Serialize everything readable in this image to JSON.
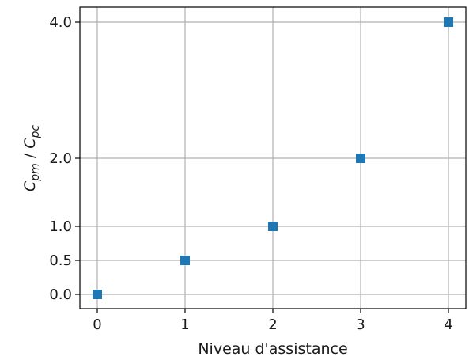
{
  "chart_data": {
    "type": "scatter",
    "x": [
      0,
      1,
      2,
      3,
      4
    ],
    "y": [
      0.0,
      0.5,
      1.0,
      2.0,
      4.0
    ],
    "xlabel": "Niveau d'assistance",
    "ylabel": {
      "c1": "C",
      "s1": "pm",
      "sep": " / ",
      "c2": "C",
      "s2": "pc"
    },
    "xticks": [
      0,
      1,
      2,
      3,
      4
    ],
    "xtick_labels": [
      "0",
      "1",
      "2",
      "3",
      "4"
    ],
    "yticks": [
      0.0,
      0.5,
      1.0,
      2.0,
      4.0
    ],
    "ytick_labels": [
      "0.0",
      "0.5",
      "1.0",
      "2.0",
      "4.0"
    ],
    "xlim": [
      -0.2,
      4.2
    ],
    "ylim": [
      -0.2,
      4.2
    ],
    "grid": true,
    "marker": "square",
    "color": "#1f77b4"
  }
}
